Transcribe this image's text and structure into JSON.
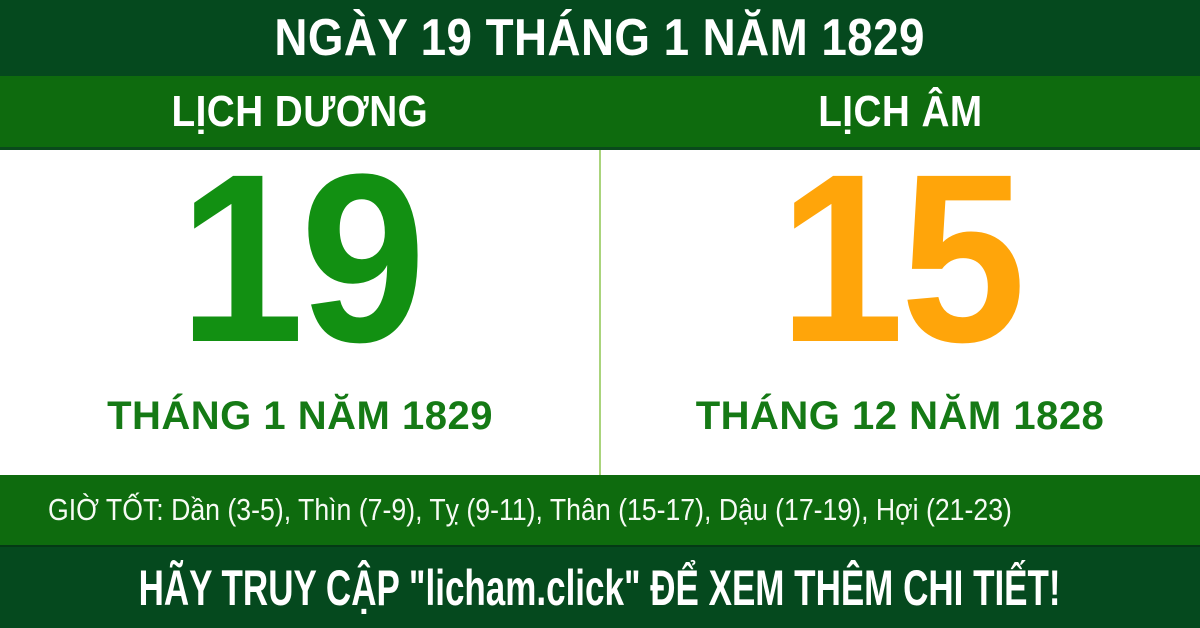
{
  "header": {
    "title": "NGÀY 19 THÁNG 1 NĂM 1829"
  },
  "calendar": {
    "solar": {
      "label": "LỊCH DƯƠNG",
      "day": "19",
      "month_year": "THÁNG 1 NĂM 1829"
    },
    "lunar": {
      "label": "LỊCH ÂM",
      "day": "15",
      "month_year": "THÁNG 12 NĂM 1828"
    }
  },
  "good_hours": {
    "text": "GIỜ TỐT: Dần (3-5), Thìn (7-9), Tỵ (9-11), Thân (15-17), Dậu (17-19), Hợi (21-23)"
  },
  "footer": {
    "cta": "HÃY TRUY CẬP \"licham.click\" ĐỂ XEM THÊM CHI TIẾT!"
  },
  "colors": {
    "dark_green_bar": "#05491e",
    "bright_green_bar": "#0e6b0e",
    "solar_day_green": "#129012",
    "month_text_green": "#157a15",
    "lunar_day_orange": "#ffa50a",
    "divider_light_green": "#aad47c",
    "text_white": "#ffffff"
  }
}
